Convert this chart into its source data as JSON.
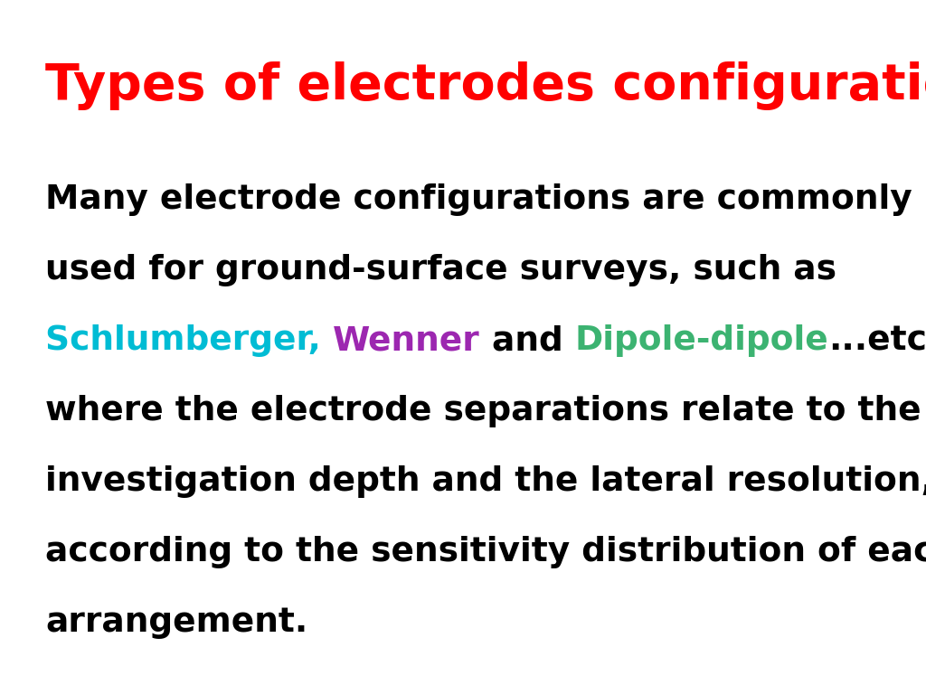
{
  "title": "Types of electrodes configurations",
  "title_color": "#ff0000",
  "title_fontsize": 40,
  "background_color": "#ffffff",
  "body_fontsize": 27,
  "segments": [
    [
      {
        "text": "Many electrode configurations are commonly",
        "color": "#000000"
      }
    ],
    [
      {
        "text": "used for ground-surface surveys, such as",
        "color": "#000000"
      }
    ],
    [
      {
        "text": "Schlumberger, ",
        "color": "#00bcd4"
      },
      {
        "text": "Wenner",
        "color": "#9c27b0"
      },
      {
        "text": " and ",
        "color": "#000000"
      },
      {
        "text": "Dipole-dipole",
        "color": "#3cb371"
      },
      {
        "text": "...etc,",
        "color": "#000000"
      }
    ],
    [
      {
        "text": "where the electrode separations relate to the",
        "color": "#000000"
      }
    ],
    [
      {
        "text": "investigation depth and the lateral resolution,",
        "color": "#000000"
      }
    ],
    [
      {
        "text": "according to the sensitivity distribution of each",
        "color": "#000000"
      }
    ],
    [
      {
        "text": "arrangement.",
        "color": "#000000"
      }
    ]
  ]
}
